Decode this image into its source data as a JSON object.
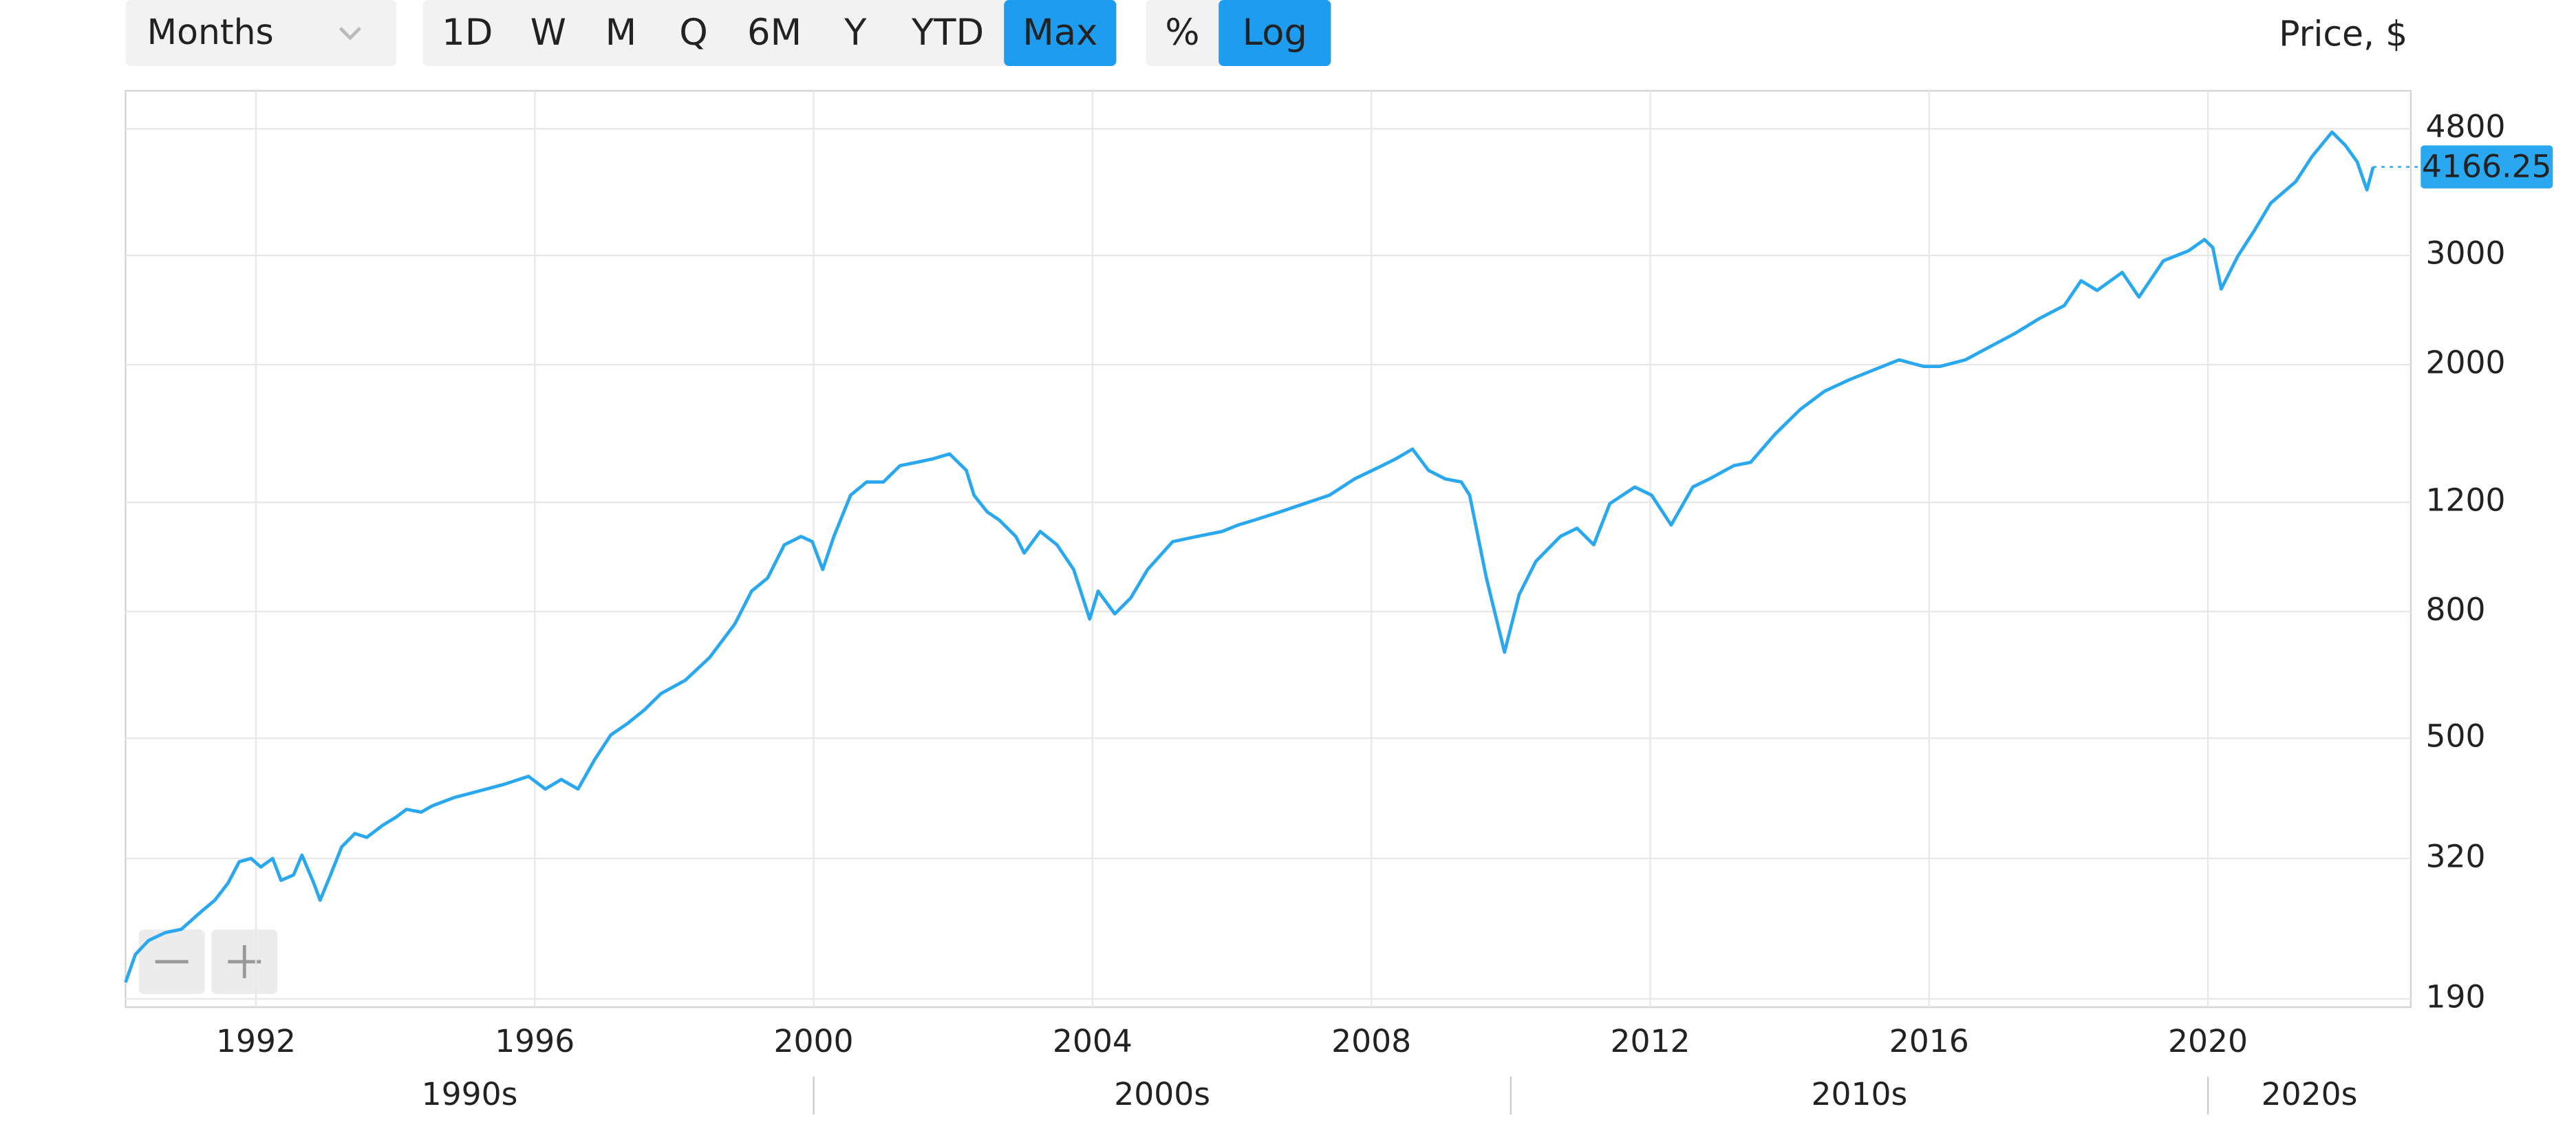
{
  "toolbar": {
    "interval": "Months",
    "ranges": [
      "1D",
      "W",
      "M",
      "Q",
      "6M",
      "Y",
      "YTD",
      "Max"
    ],
    "active_range": "Max",
    "scale_modes": [
      "%",
      "Log"
    ],
    "active_scale_mode": "Log"
  },
  "chart_data": {
    "type": "line",
    "ylabel": "Price, $",
    "log_scale": true,
    "grid": true,
    "xlim": [
      1990.13,
      2022.91
    ],
    "xticks": [
      1992,
      1996,
      2000,
      2004,
      2008,
      2012,
      2016,
      2020
    ],
    "ylim": [
      184.3,
      5526
    ],
    "yticks": [
      190,
      320,
      500,
      800,
      1200,
      2000,
      3000,
      4800
    ],
    "decades": [
      "1990s",
      "2000s",
      "2010s",
      "2020s"
    ],
    "series": [
      {
        "color": "#29a8f0",
        "x": [
          1990.13,
          1990.27,
          1990.46,
          1990.7,
          1990.93,
          1991.22,
          1991.41,
          1991.6,
          1991.76,
          1991.93,
          1992.07,
          1992.24,
          1992.36,
          1992.54,
          1992.66,
          1992.83,
          1992.92,
          1993.07,
          1993.23,
          1993.42,
          1993.59,
          1993.82,
          1994.01,
          1994.16,
          1994.37,
          1994.53,
          1994.84,
          1995.2,
          1995.55,
          1995.91,
          1996.15,
          1996.38,
          1996.62,
          1996.86,
          1997.09,
          1997.33,
          1997.57,
          1997.81,
          1998.16,
          1998.51,
          1998.87,
          1999.11,
          1999.34,
          1999.58,
          1999.82,
          1999.98,
          2000.13,
          2000.29,
          2000.53,
          2000.76,
          2001.0,
          2001.24,
          2001.48,
          2001.71,
          2001.95,
          2002.19,
          2002.3,
          2002.49,
          2002.66,
          2002.9,
          2003.02,
          2003.25,
          2003.49,
          2003.73,
          2003.96,
          2004.08,
          2004.32,
          2004.55,
          2004.79,
          2005.15,
          2005.5,
          2005.86,
          2006.09,
          2006.33,
          2006.69,
          2007.04,
          2007.4,
          2007.76,
          2008.11,
          2008.35,
          2008.59,
          2008.82,
          2009.06,
          2009.29,
          2009.41,
          2009.65,
          2009.91,
          2010.12,
          2010.36,
          2010.71,
          2010.95,
          2011.19,
          2011.42,
          2011.78,
          2012.02,
          2012.3,
          2012.61,
          2012.85,
          2013.2,
          2013.44,
          2013.79,
          2014.15,
          2014.5,
          2014.86,
          2015.21,
          2015.57,
          2015.92,
          2016.16,
          2016.52,
          2016.87,
          2017.23,
          2017.58,
          2017.94,
          2018.18,
          2018.41,
          2018.77,
          2019.01,
          2019.36,
          2019.72,
          2019.95,
          2020.07,
          2020.19,
          2020.43,
          2020.66,
          2020.9,
          2021.26,
          2021.49,
          2021.78,
          2021.97,
          2022.14,
          2022.28,
          2022.37
        ],
        "values": [
          202,
          224,
          236,
          243,
          246,
          263,
          274,
          292,
          316,
          320,
          310,
          320,
          295,
          301,
          324,
          292,
          274,
          301,
          334,
          351,
          346,
          362,
          373,
          384,
          380,
          389,
          401,
          411,
          421,
          434,
          414,
          429,
          414,
          462,
          506,
          528,
          555,
          590,
          620,
          675,
          764,
          863,
          906,
          1025,
          1057,
          1037,
          935,
          1057,
          1232,
          1294,
          1294,
          1375,
          1392,
          1410,
          1436,
          1351,
          1232,
          1158,
          1124,
          1057,
          994,
          1077,
          1025,
          935,
          778,
          863,
          793,
          842,
          935,
          1037,
          1057,
          1077,
          1103,
          1124,
          1158,
          1194,
          1232,
          1309,
          1367,
          1410,
          1462,
          1351,
          1309,
          1294,
          1232,
          906,
          688,
          852,
          964,
          1057,
          1090,
          1025,
          1194,
          1270,
          1232,
          1103,
          1270,
          1309,
          1375,
          1392,
          1545,
          1693,
          1812,
          1892,
          1962,
          2036,
          1987,
          1987,
          2036,
          2137,
          2245,
          2373,
          2491,
          2731,
          2634,
          2817,
          2570,
          2940,
          3051,
          3182,
          3088,
          2649,
          2994,
          3283,
          3642,
          3946,
          4326,
          4741,
          4515,
          4247,
          3826,
          4166.25
        ]
      }
    ]
  }
}
